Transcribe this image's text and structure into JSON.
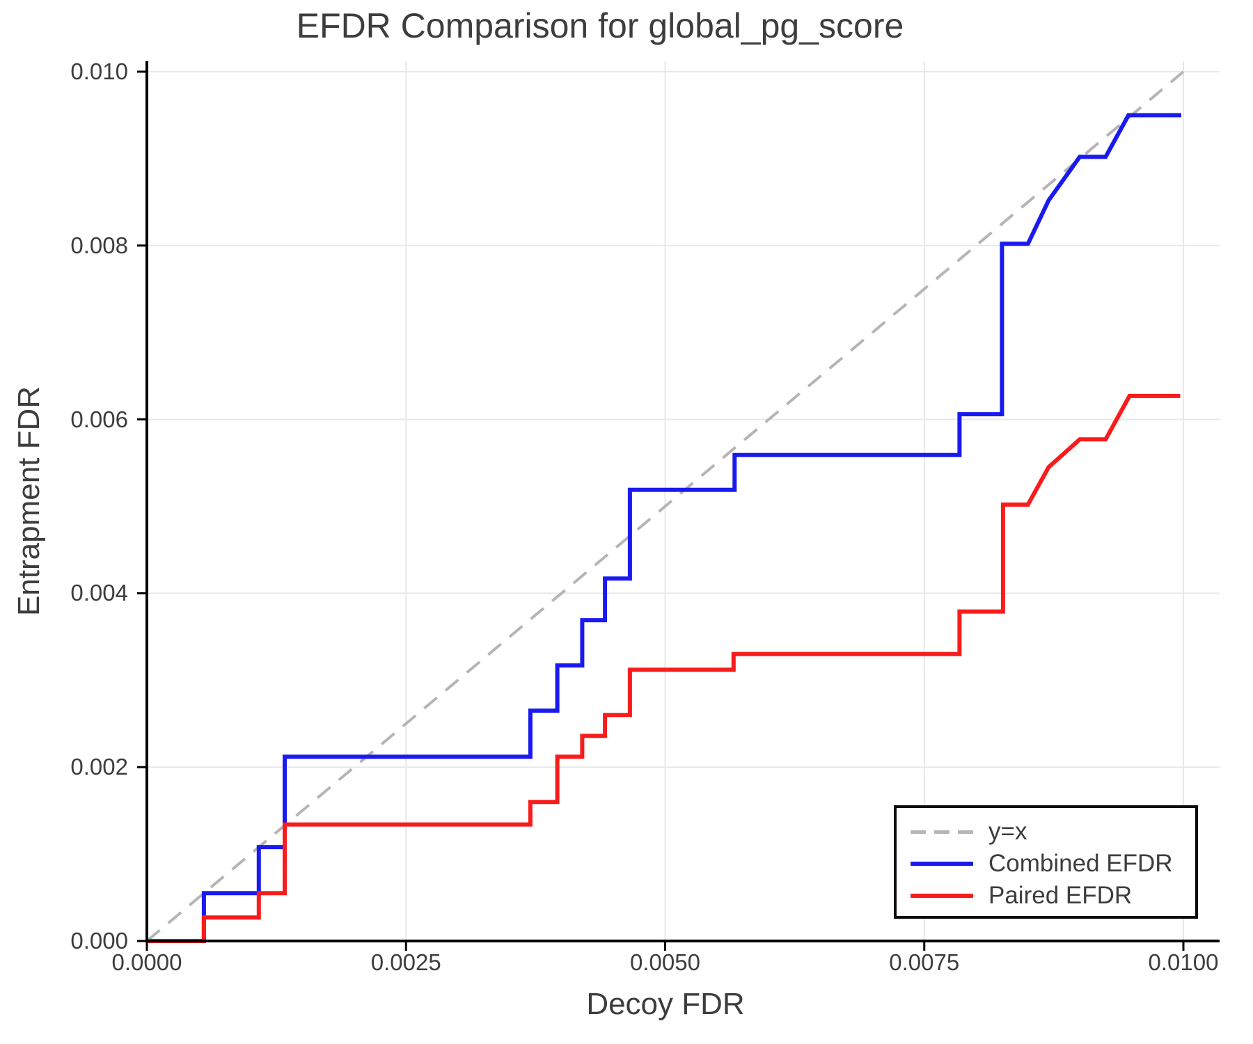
{
  "title": "EFDR Comparison for global_pg_score",
  "axes": {
    "xlabel": "Decoy FDR",
    "ylabel": "Entrapment FDR",
    "x_ticks": [
      {
        "value": 0.0,
        "label": "0.0000"
      },
      {
        "value": 0.0025,
        "label": "0.0025"
      },
      {
        "value": 0.005,
        "label": "0.0050"
      },
      {
        "value": 0.0075,
        "label": "0.0075"
      },
      {
        "value": 0.01,
        "label": "0.0100"
      }
    ],
    "y_ticks": [
      {
        "value": 0.0,
        "label": "0.000"
      },
      {
        "value": 0.002,
        "label": "0.002"
      },
      {
        "value": 0.004,
        "label": "0.004"
      },
      {
        "value": 0.006,
        "label": "0.006"
      },
      {
        "value": 0.008,
        "label": "0.008"
      },
      {
        "value": 0.01,
        "label": "0.010"
      }
    ]
  },
  "colors": {
    "combined": "#1a1af0",
    "paired": "#f81c1c",
    "identity": "#b5b5b5",
    "grid": "#e8e8e8",
    "spine": "#000000",
    "text": "#3d3d3d"
  },
  "legend": {
    "entries": [
      {
        "name": "identity",
        "label": "y=x",
        "color": "#b5b5b5",
        "dashed": true
      },
      {
        "name": "combined",
        "label": "Combined EFDR",
        "color": "#1a1af0",
        "dashed": false
      },
      {
        "name": "paired",
        "label": "Paired EFDR",
        "color": "#f81c1c",
        "dashed": false
      }
    ]
  },
  "chart_data": {
    "type": "line",
    "title": "EFDR Comparison for global_pg_score",
    "xlabel": "Decoy FDR",
    "ylabel": "Entrapment FDR",
    "xlim": [
      0.0,
      0.0104
    ],
    "ylim": [
      0.0,
      0.01005
    ],
    "grid": true,
    "legend_position": "lower right",
    "series": [
      {
        "name": "y=x",
        "style": "dashed",
        "color": "#b5b5b5",
        "points": [
          [
            0.0,
            0.0
          ],
          [
            0.01,
            0.01
          ]
        ]
      },
      {
        "name": "Combined EFDR",
        "style": "solid",
        "color": "#1a1af0",
        "points": [
          [
            0.0,
            0.0
          ],
          [
            0.00055,
            0.0
          ],
          [
            0.00055,
            0.00055
          ],
          [
            0.00108,
            0.00055
          ],
          [
            0.00108,
            0.00108
          ],
          [
            0.00133,
            0.00108
          ],
          [
            0.00133,
            0.00212
          ],
          [
            0.0037,
            0.00212
          ],
          [
            0.0037,
            0.00265
          ],
          [
            0.00396,
            0.00265
          ],
          [
            0.00396,
            0.00317
          ],
          [
            0.0042,
            0.00317
          ],
          [
            0.0042,
            0.00369
          ],
          [
            0.00442,
            0.00369
          ],
          [
            0.00442,
            0.00417
          ],
          [
            0.00466,
            0.00417
          ],
          [
            0.00466,
            0.00519
          ],
          [
            0.00567,
            0.00519
          ],
          [
            0.00567,
            0.00559
          ],
          [
            0.00784,
            0.00559
          ],
          [
            0.00784,
            0.00606
          ],
          [
            0.00825,
            0.00606
          ],
          [
            0.00825,
            0.00802
          ],
          [
            0.0085,
            0.00802
          ],
          [
            0.0087,
            0.00852
          ],
          [
            0.009,
            0.00902
          ],
          [
            0.00925,
            0.00902
          ],
          [
            0.00947,
            0.0095
          ],
          [
            0.00998,
            0.0095
          ]
        ]
      },
      {
        "name": "Paired EFDR",
        "style": "solid",
        "color": "#f81c1c",
        "points": [
          [
            0.0,
            0.0
          ],
          [
            0.00055,
            0.0
          ],
          [
            0.00055,
            0.00027
          ],
          [
            0.00108,
            0.00027
          ],
          [
            0.00108,
            0.00055
          ],
          [
            0.00133,
            0.00055
          ],
          [
            0.00133,
            0.00134
          ],
          [
            0.0037,
            0.00134
          ],
          [
            0.0037,
            0.0016
          ],
          [
            0.00396,
            0.0016
          ],
          [
            0.00396,
            0.00212
          ],
          [
            0.0042,
            0.00212
          ],
          [
            0.0042,
            0.00236
          ],
          [
            0.00442,
            0.00236
          ],
          [
            0.00442,
            0.0026
          ],
          [
            0.00466,
            0.0026
          ],
          [
            0.00466,
            0.00312
          ],
          [
            0.00566,
            0.00312
          ],
          [
            0.00566,
            0.0033
          ],
          [
            0.00784,
            0.0033
          ],
          [
            0.00784,
            0.00379
          ],
          [
            0.00826,
            0.00379
          ],
          [
            0.00826,
            0.00502
          ],
          [
            0.0085,
            0.00502
          ],
          [
            0.0087,
            0.00545
          ],
          [
            0.009,
            0.00577
          ],
          [
            0.00925,
            0.00577
          ],
          [
            0.00948,
            0.00627
          ],
          [
            0.00997,
            0.00627
          ]
        ]
      }
    ]
  }
}
